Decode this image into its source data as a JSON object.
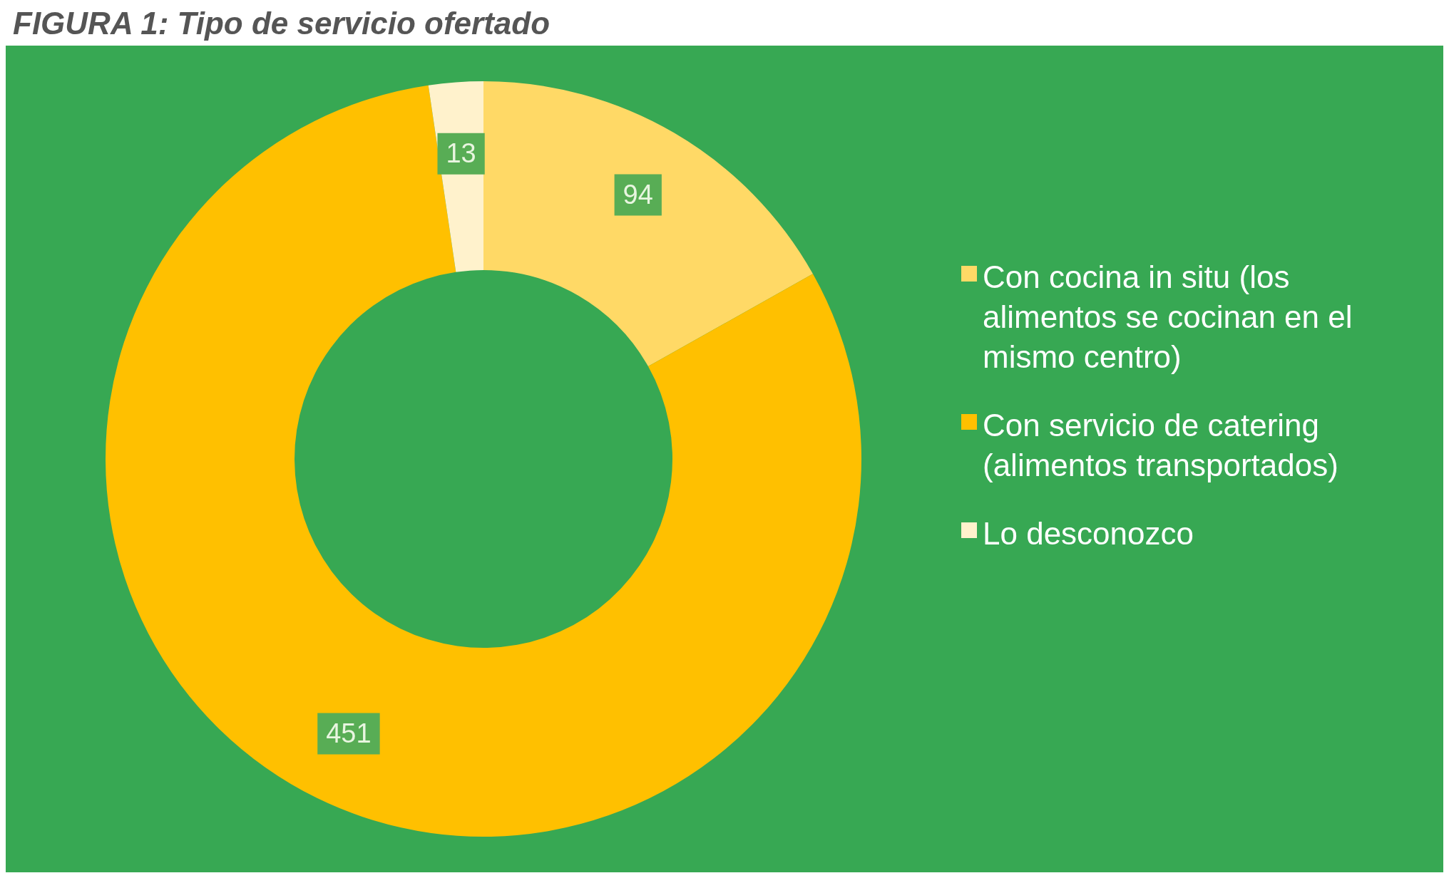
{
  "chart_data": {
    "type": "donut",
    "title": "FIGURA 1: Tipo de servicio ofertado",
    "categories": [
      "Con cocina in situ (los alimentos se cocinan en el mismo centro)",
      "Con servicio de catering (alimentos transportados)",
      "Lo desconozco"
    ],
    "values": [
      94,
      451,
      13
    ],
    "colors": [
      "#ffd966",
      "#ffc000",
      "#fff2cc"
    ],
    "data_labels": true,
    "legend": "right"
  }
}
